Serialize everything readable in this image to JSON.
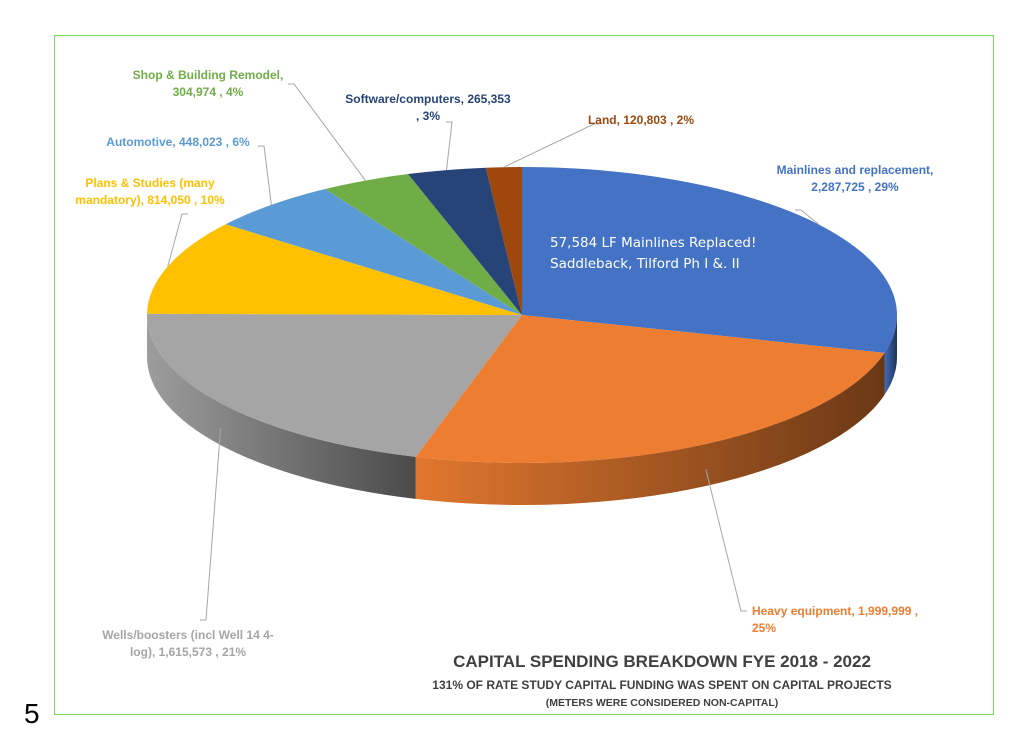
{
  "page_number": "5",
  "chart_data": {
    "type": "pie",
    "title": "CAPITAL SPENDING BREAKDOWN FYE 2018 - 2022",
    "subtitle": "131% OF RATE STUDY CAPITAL FUNDING WAS SPENT ON CAPITAL PROJECTS",
    "note": "(METERS WERE CONSIDERED NON-CAPITAL)",
    "annotation": [
      "57,584 LF Mainlines Replaced!",
      "Saddleback, Tilford Ph I &. II"
    ],
    "slices": [
      {
        "label_lines": [
          "Mainlines and replacement,",
          "2,287,725 , 29%"
        ],
        "value": 2287725,
        "percent": 29,
        "color": "#4472c4"
      },
      {
        "label_lines": [
          "Heavy equipment, 1,999,999 ,",
          "25%"
        ],
        "value": 1999999,
        "percent": 25,
        "color": "#ed7d31"
      },
      {
        "label_lines": [
          "Wells/boosters (incl Well 14 4-",
          "log), 1,615,573 , 21%"
        ],
        "value": 1615573,
        "percent": 21,
        "color": "#a5a5a5"
      },
      {
        "label_lines": [
          "Plans & Studies (many",
          "mandatory), 814,050 , 10%"
        ],
        "value": 814050,
        "percent": 10,
        "color": "#ffc000"
      },
      {
        "label_lines": [
          "Automotive, 448,023 , 6%"
        ],
        "value": 448023,
        "percent": 6,
        "color": "#5b9bd5"
      },
      {
        "label_lines": [
          "Shop & Building Remodel,",
          "304,974 , 4%"
        ],
        "value": 304974,
        "percent": 4,
        "color": "#70ad47"
      },
      {
        "label_lines": [
          "Software/computers, 265,353",
          ", 3%"
        ],
        "value": 265353,
        "percent": 3,
        "color": "#264478"
      },
      {
        "label_lines": [
          "Land, 120,803 , 2%"
        ],
        "value": 120803,
        "percent": 2,
        "color": "#9e480e"
      }
    ]
  }
}
